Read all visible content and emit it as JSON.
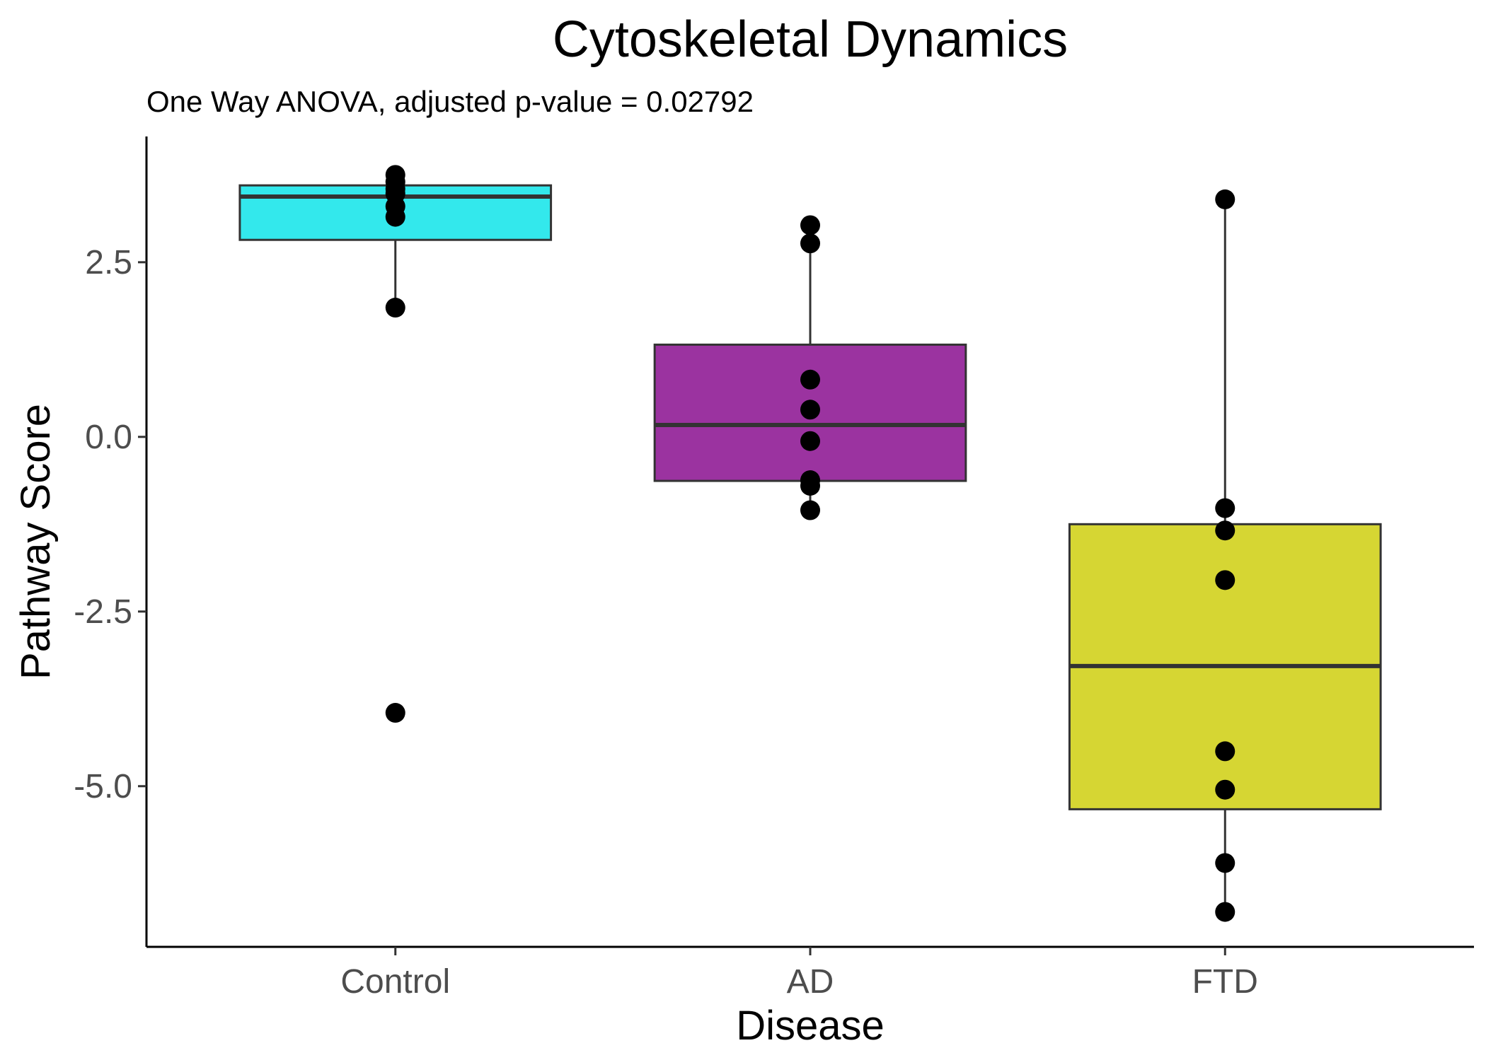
{
  "chart_data": {
    "type": "box",
    "title": "Cytoskeletal Dynamics",
    "subtitle": "One Way ANOVA, adjusted p-value = 0.02792",
    "xlabel": "Disease",
    "ylabel": "Pathway Score",
    "categories": [
      "Control",
      "AD",
      "FTD"
    ],
    "ylim": [
      -7.3,
      4.3
    ],
    "yticks": [
      -5.0,
      -2.5,
      0.0,
      2.5
    ],
    "ytick_labels": [
      "-5.0",
      "-2.5",
      "0.0",
      "2.5"
    ],
    "grid": false,
    "legend": "none",
    "boxes": [
      {
        "category": "Control",
        "whisker_low": 1.85,
        "q1": 2.82,
        "median": 3.44,
        "q3": 3.6,
        "whisker_high": 3.75,
        "color": "#33e8ec"
      },
      {
        "category": "AD",
        "whisker_low": -1.05,
        "q1": -0.63,
        "median": 0.17,
        "q3": 1.32,
        "whisker_high": 3.03,
        "color": "#9b33a0"
      },
      {
        "category": "FTD",
        "whisker_low": -6.8,
        "q1": -5.33,
        "median": -3.28,
        "q3": -1.25,
        "whisker_high": 3.4,
        "color": "#d6d633"
      }
    ],
    "points": [
      {
        "category": "Control",
        "values": [
          3.75,
          3.65,
          3.55,
          3.48,
          3.3,
          3.15,
          1.85,
          -3.95
        ]
      },
      {
        "category": "AD",
        "values": [
          3.03,
          2.77,
          0.82,
          0.39,
          -0.06,
          -0.62,
          -0.7,
          -1.05
        ]
      },
      {
        "category": "FTD",
        "values": [
          3.4,
          -1.02,
          -1.34,
          -2.05,
          -4.5,
          -5.05,
          -6.1,
          -6.8
        ]
      }
    ]
  }
}
